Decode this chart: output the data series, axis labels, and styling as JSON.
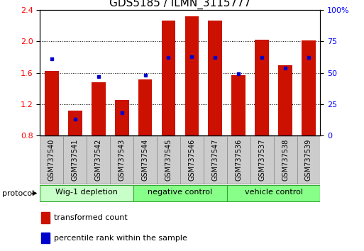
{
  "title": "GDS5185 / ILMN_3115777",
  "samples": [
    "GSM737540",
    "GSM737541",
    "GSM737542",
    "GSM737543",
    "GSM737544",
    "GSM737545",
    "GSM737546",
    "GSM737547",
    "GSM737536",
    "GSM737537",
    "GSM737538",
    "GSM737539"
  ],
  "transformed_count": [
    1.62,
    1.12,
    1.48,
    1.25,
    1.52,
    2.27,
    2.32,
    2.27,
    1.57,
    2.02,
    1.7,
    2.01
  ],
  "percentile_rank": [
    61,
    13,
    47,
    18,
    48,
    62,
    63,
    62,
    49,
    62,
    54,
    62
  ],
  "groups": [
    {
      "label": "Wig-1 depletion",
      "indices": [
        0,
        1,
        2,
        3
      ],
      "color": "#b3ffb3"
    },
    {
      "label": "negative control",
      "indices": [
        4,
        5,
        6,
        7
      ],
      "color": "#66ff66"
    },
    {
      "label": "vehicle control",
      "indices": [
        8,
        9,
        10,
        11
      ],
      "color": "#66ff66"
    }
  ],
  "ylim_left": [
    0.8,
    2.4
  ],
  "ylim_right": [
    0,
    100
  ],
  "yticks_left": [
    0.8,
    1.2,
    1.6,
    2.0,
    2.4
  ],
  "yticks_right": [
    0,
    25,
    50,
    75,
    100
  ],
  "bar_color": "#cc1100",
  "dot_color": "#0000cc",
  "bar_width": 0.6,
  "protocol_label": "protocol",
  "legend_tc": "transformed count",
  "legend_pr": "percentile rank within the sample",
  "tick_label_fontsize": 7,
  "group_label_fontsize": 8,
  "title_fontsize": 11,
  "group_colors": [
    "#c8ffc8",
    "#88ff88",
    "#88ff88"
  ],
  "group_border_color": "#33aa33",
  "sample_box_color": "#cccccc",
  "sample_box_edge": "#888888"
}
